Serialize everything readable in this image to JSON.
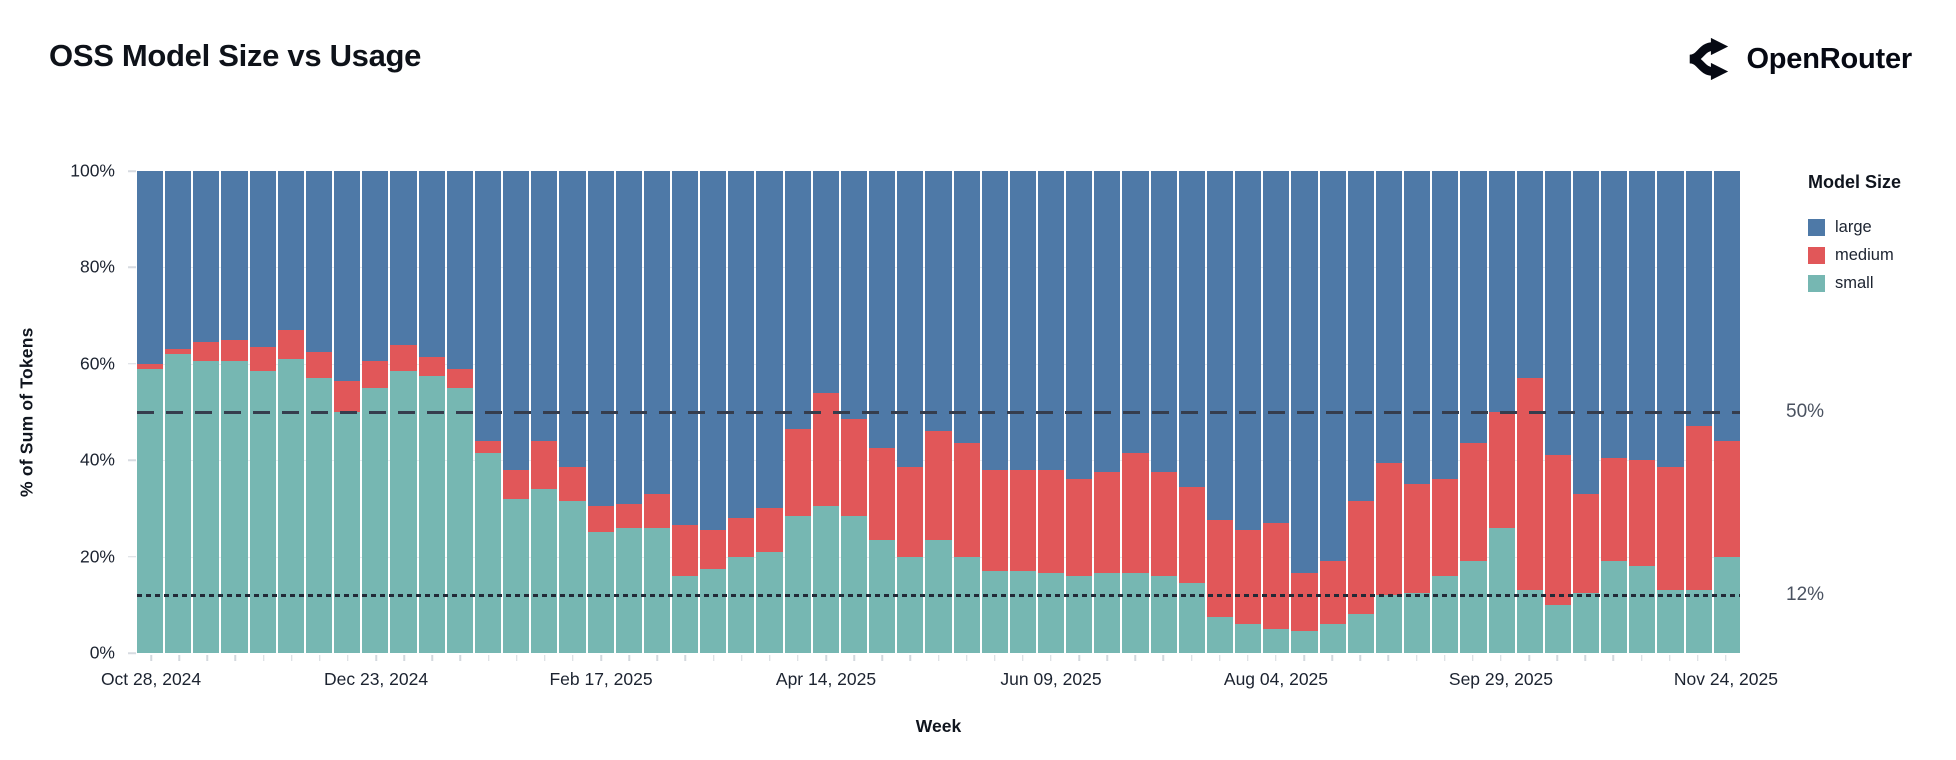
{
  "header": {
    "title": "OSS Model Size vs Usage",
    "brand": "OpenRouter"
  },
  "chart_data": {
    "type": "bar",
    "variant": "stacked-100pct-weekly",
    "title": "OSS Model Size vs Usage",
    "xlabel": "Week",
    "ylabel": "% of Sum of Tokens",
    "ylim": [
      0,
      100
    ],
    "grid": "horizontal-light",
    "colors": {
      "large": "#4E79A7",
      "medium": "#E15759",
      "small": "#76B7B2"
    },
    "y_ticks": [
      {
        "label": "0%",
        "value": 0
      },
      {
        "label": "20%",
        "value": 20
      },
      {
        "label": "40%",
        "value": 40
      },
      {
        "label": "60%",
        "value": 60
      },
      {
        "label": "80%",
        "value": 80
      },
      {
        "label": "100%",
        "value": 100
      }
    ],
    "x_ticks": [
      {
        "label": "Oct 28, 2024",
        "index": 0
      },
      {
        "label": "Dec 23, 2024",
        "index": 8
      },
      {
        "label": "Feb 17, 2025",
        "index": 16
      },
      {
        "label": "Apr 14, 2025",
        "index": 24
      },
      {
        "label": "Jun 09, 2025",
        "index": 32
      },
      {
        "label": "Aug 04, 2025",
        "index": 40
      },
      {
        "label": "Sep 29, 2025",
        "index": 48
      },
      {
        "label": "Nov 24, 2025",
        "index": 56
      }
    ],
    "reference_lines": [
      {
        "label": "50%",
        "value": 50,
        "style": "dashed"
      },
      {
        "label": "12%",
        "value": 12,
        "style": "dotted"
      }
    ],
    "legend": {
      "title": "Model Size",
      "position": "right",
      "entries": [
        {
          "label": "large",
          "color": "#4E79A7"
        },
        {
          "label": "medium",
          "color": "#E15759"
        },
        {
          "label": "small",
          "color": "#76B7B2"
        }
      ]
    },
    "weeks": [
      "2024-10-28",
      "2024-11-04",
      "2024-11-11",
      "2024-11-18",
      "2024-11-25",
      "2024-12-02",
      "2024-12-09",
      "2024-12-16",
      "2024-12-23",
      "2024-12-30",
      "2025-01-06",
      "2025-01-13",
      "2025-01-20",
      "2025-01-27",
      "2025-02-03",
      "2025-02-10",
      "2025-02-17",
      "2025-02-24",
      "2025-03-03",
      "2025-03-10",
      "2025-03-17",
      "2025-03-24",
      "2025-03-31",
      "2025-04-07",
      "2025-04-14",
      "2025-04-21",
      "2025-04-28",
      "2025-05-05",
      "2025-05-12",
      "2025-05-19",
      "2025-05-26",
      "2025-06-02",
      "2025-06-09",
      "2025-06-16",
      "2025-06-23",
      "2025-06-30",
      "2025-07-07",
      "2025-07-14",
      "2025-07-21",
      "2025-07-28",
      "2025-08-04",
      "2025-08-11",
      "2025-08-18",
      "2025-08-25",
      "2025-09-01",
      "2025-09-08",
      "2025-09-15",
      "2025-09-22",
      "2025-09-29",
      "2025-10-06",
      "2025-10-13",
      "2025-10-20",
      "2025-10-27",
      "2025-11-03",
      "2025-11-10",
      "2025-11-17",
      "2025-11-24"
    ],
    "series": [
      {
        "name": "small",
        "color": "#76B7B2",
        "values": [
          59,
          62,
          60.5,
          60.5,
          58.5,
          61,
          57,
          50,
          55,
          58.5,
          57.5,
          55,
          41.5,
          32,
          34,
          31.5,
          25,
          26,
          26,
          16,
          17.5,
          20,
          21,
          28.5,
          30.5,
          28.5,
          23.5,
          20,
          23.5,
          20,
          17,
          17,
          16.5,
          16,
          16.5,
          16.5,
          16,
          14.5,
          7.5,
          6,
          5,
          4.5,
          6,
          8,
          12,
          12.5,
          16,
          19,
          26,
          13,
          10,
          12.5,
          19,
          18,
          13,
          13,
          20
        ]
      },
      {
        "name": "medium",
        "color": "#E15759",
        "values": [
          1,
          1,
          4,
          4.5,
          5,
          6,
          5.5,
          6.5,
          5.5,
          5.5,
          4,
          4,
          2.5,
          6,
          10,
          7,
          5.5,
          5,
          7,
          10.5,
          8,
          8,
          9,
          18,
          23.5,
          20,
          19,
          18.5,
          22.5,
          23.5,
          21,
          21,
          21.5,
          20,
          21,
          25,
          21.5,
          20,
          20,
          19.5,
          22,
          12,
          13,
          23.5,
          27.5,
          22.5,
          20,
          24.5,
          24,
          44,
          31,
          20.5,
          21.5,
          22,
          25.5,
          34,
          24
        ]
      },
      {
        "name": "large",
        "color": "#4E79A7",
        "values": [
          40,
          37,
          35.5,
          35,
          36.5,
          33,
          37.5,
          43.5,
          39.5,
          36,
          38.5,
          41,
          56,
          62,
          56,
          61.5,
          69.5,
          69,
          67,
          73.5,
          74.5,
          72,
          70,
          53.5,
          46,
          51.5,
          57.5,
          61.5,
          54,
          56.5,
          62,
          62,
          62,
          64,
          62.5,
          58.5,
          62.5,
          65.5,
          72.5,
          74.5,
          73,
          83.5,
          81,
          68.5,
          60.5,
          65,
          64,
          56.5,
          50,
          43,
          59,
          67,
          59.5,
          60,
          61.5,
          53,
          56
        ]
      }
    ]
  }
}
